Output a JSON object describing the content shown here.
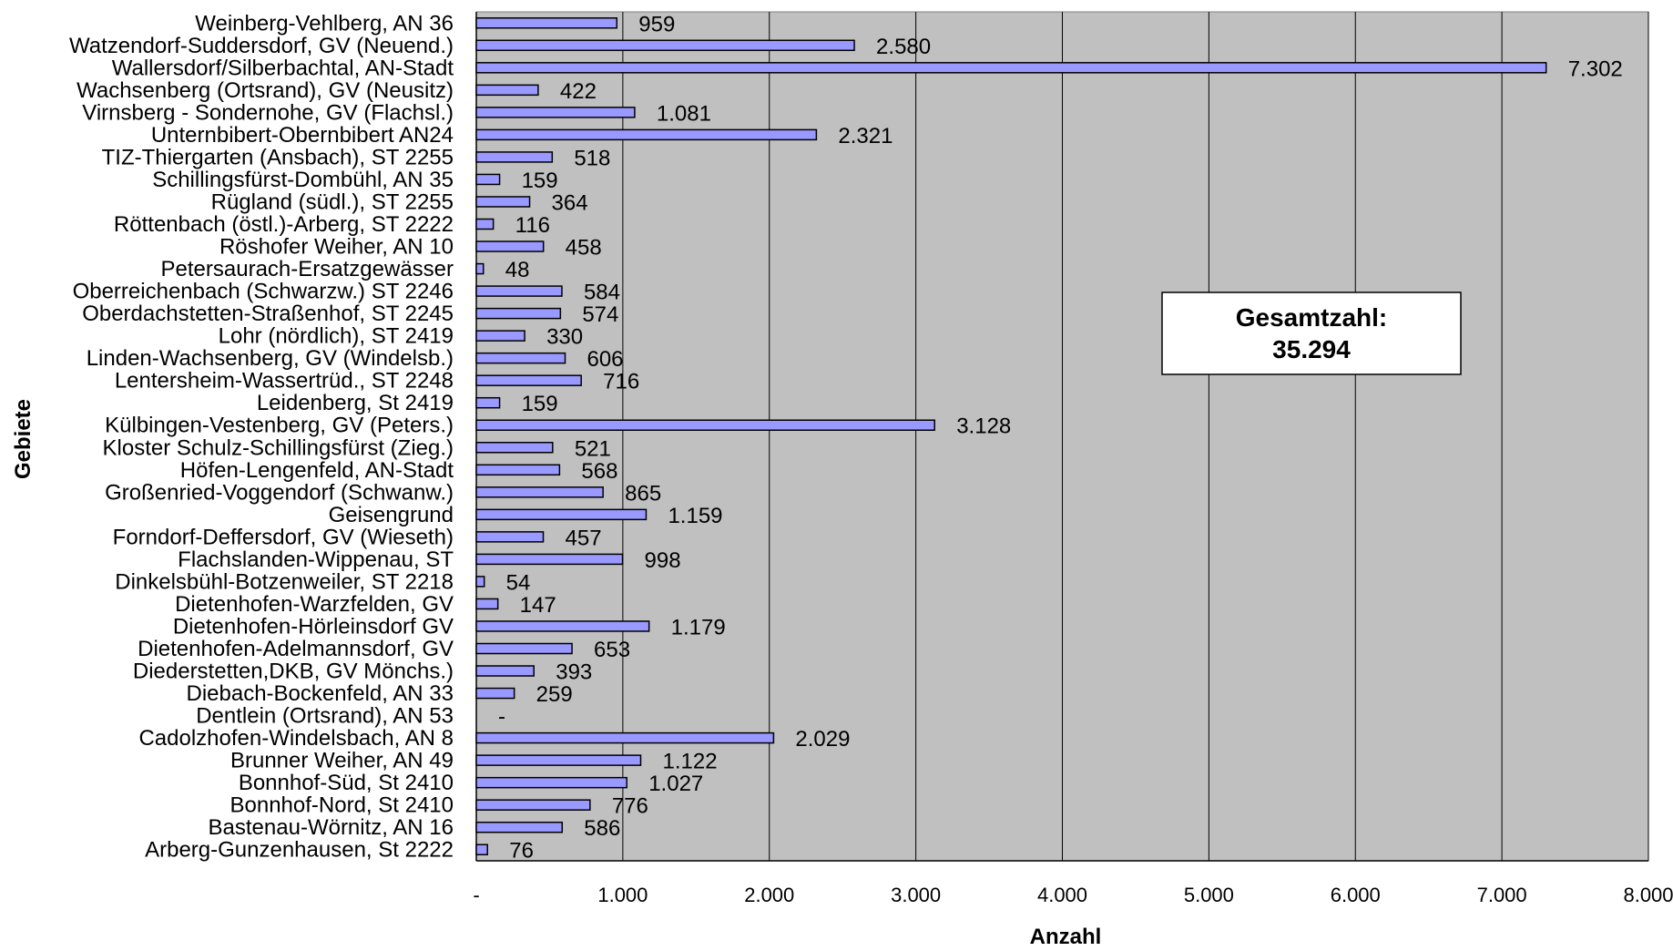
{
  "chart_data": {
    "type": "bar",
    "orientation": "horizontal",
    "title": "",
    "xlabel": "Anzahl",
    "ylabel": "Gebiete",
    "xlim": [
      0,
      8000
    ],
    "x_ticks": [
      0,
      1000,
      2000,
      3000,
      4000,
      5000,
      6000,
      7000,
      8000
    ],
    "x_tick_labels": [
      "-",
      "1.000",
      "2.000",
      "3.000",
      "4.000",
      "5.000",
      "6.000",
      "7.000",
      "8.000"
    ],
    "grid": "vertical",
    "categories": [
      "Weinberg-Vehlberg, AN 36",
      "Watzendorf-Suddersdorf, GV (Neuend.)",
      "Wallersdorf/Silberbachtal, AN-Stadt",
      "Wachsenberg (Ortsrand), GV (Neusitz)",
      "Virnsberg - Sondernohe, GV (Flachsl.)",
      "Unternbibert-Obernbibert AN24",
      "TIZ-Thiergarten (Ansbach), ST 2255",
      "Schillingsfürst-Dombühl, AN 35",
      "Rügland (südl.), ST 2255",
      "Röttenbach (östl.)-Arberg, ST 2222",
      "Röshofer Weiher, AN 10",
      "Petersaurach-Ersatzgewässer",
      "Oberreichenbach (Schwarzw.) ST 2246",
      "Oberdachstetten-Straßenhof, ST 2245",
      "Lohr  (nördlich), ST 2419",
      "Linden-Wachsenberg, GV (Windelsb.)",
      "Lentersheim-Wassertrüd., ST 2248",
      "Leidenberg, St 2419",
      "Külbingen-Vestenberg, GV (Peters.)",
      "Kloster Schulz-Schillingsfürst (Zieg.)",
      "Höfen-Lengenfeld, AN-Stadt",
      "Großenried-Voggendorf (Schwanw.)",
      "Geisengrund",
      "Forndorf-Deffersdorf, GV (Wieseth)",
      "Flachslanden-Wippenau, ST",
      "Dinkelsbühl-Botzenweiler, ST 2218",
      "Dietenhofen-Warzfelden, GV",
      "Dietenhofen-Hörleinsdorf GV",
      "Dietenhofen-Adelmannsdorf, GV",
      "Diederstetten,DKB, GV Mönchs.)",
      "Diebach-Bockenfeld, AN 33",
      "Dentlein (Ortsrand), AN 53",
      "Cadolzhofen-Windelsbach, AN 8",
      "Brunner Weiher, AN 49",
      "Bonnhof-Süd, St 2410",
      "Bonnhof-Nord, St 2410",
      "Bastenau-Wörnitz, AN 16",
      "Arberg-Gunzenhausen, St 2222"
    ],
    "values": [
      959,
      2580,
      7302,
      422,
      1081,
      2321,
      518,
      159,
      364,
      116,
      458,
      48,
      584,
      574,
      330,
      606,
      716,
      159,
      3128,
      521,
      568,
      865,
      1159,
      457,
      998,
      54,
      147,
      1179,
      653,
      393,
      259,
      0,
      2029,
      1122,
      1027,
      776,
      586,
      76
    ],
    "value_labels": [
      "959",
      "2.580",
      "7.302",
      "422",
      "1.081",
      "2.321",
      "518",
      "159",
      "364",
      "116",
      "458",
      "48",
      "584",
      "574",
      "330",
      "606",
      "716",
      "159",
      "3.128",
      "521",
      "568",
      "865",
      "1.159",
      "457",
      "998",
      "54",
      "147",
      "1.179",
      "653",
      "393",
      "259",
      "-",
      "2.029",
      "1.122",
      "1.027",
      "776",
      "586",
      "76"
    ],
    "annotation": {
      "line1": "Gesamtzahl:",
      "line2": "35.294"
    },
    "colors": {
      "plot_background": "#c0c0c0",
      "bar_fill": "#9999ff",
      "bar_stroke": "#000000",
      "grid": "#000000",
      "annotation_background": "#ffffff"
    }
  }
}
